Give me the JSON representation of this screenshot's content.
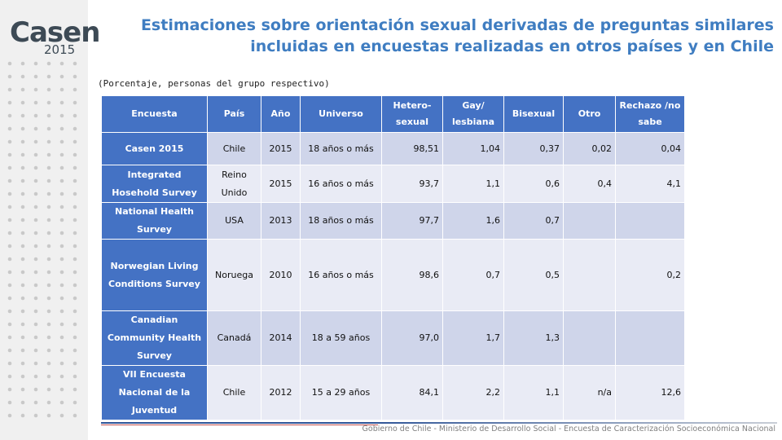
{
  "logo": {
    "word": "Casen",
    "year": "2015"
  },
  "title": "Estimaciones sobre orientación sexual derivadas de preguntas similares incluidas en encuestas realizadas en otros países y en Chile",
  "subtitle": "(Porcentaje, personas del grupo respectivo)",
  "table": {
    "headers": [
      "Encuesta",
      "País",
      "Año",
      "Universo",
      "Hetero-sexual",
      "Gay/ lesbiana",
      "Bisexual",
      "Otro",
      "Rechazo /no sabe"
    ],
    "rows": [
      [
        "Casen 2015",
        "Chile",
        "2015",
        "18 años o más",
        "98,51",
        "1,04",
        "0,37",
        "0,02",
        "0,04"
      ],
      [
        "Integrated Hosehold Survey",
        "Reino Unido",
        "2015",
        "16 años o más",
        "93,7",
        "1,1",
        "0,6",
        "0,4",
        "4,1"
      ],
      [
        "National Health Survey",
        "USA",
        "2013",
        "18 años o más",
        "97,7",
        "1,6",
        "0,7",
        "",
        ""
      ],
      [
        "Norwegian Living Conditions Survey",
        "Noruega",
        "2010",
        "16 años o más",
        "98,6",
        "0,7",
        "0,5",
        "",
        "0,2"
      ],
      [
        "Canadian Community Health Survey",
        "Canadá",
        "2014",
        "18 a 59 años",
        "97,0",
        "1,7",
        "1,3",
        "",
        ""
      ],
      [
        "VII Encuesta Nacional de la Juventud",
        "Chile",
        "2012",
        "15 a 29 años",
        "84,1",
        "2,2",
        "1,1",
        "n/a",
        "12,6"
      ]
    ]
  },
  "footer": "Gobierno de Chile - Ministerio de Desarrollo Social - Encuesta de Caracterización Socioeconómica Nacional",
  "colors": {
    "header_bg": "#4472c4",
    "band_dark": "#cfd5ea",
    "band_light": "#e9ebf5",
    "title": "#3f7dc1"
  }
}
